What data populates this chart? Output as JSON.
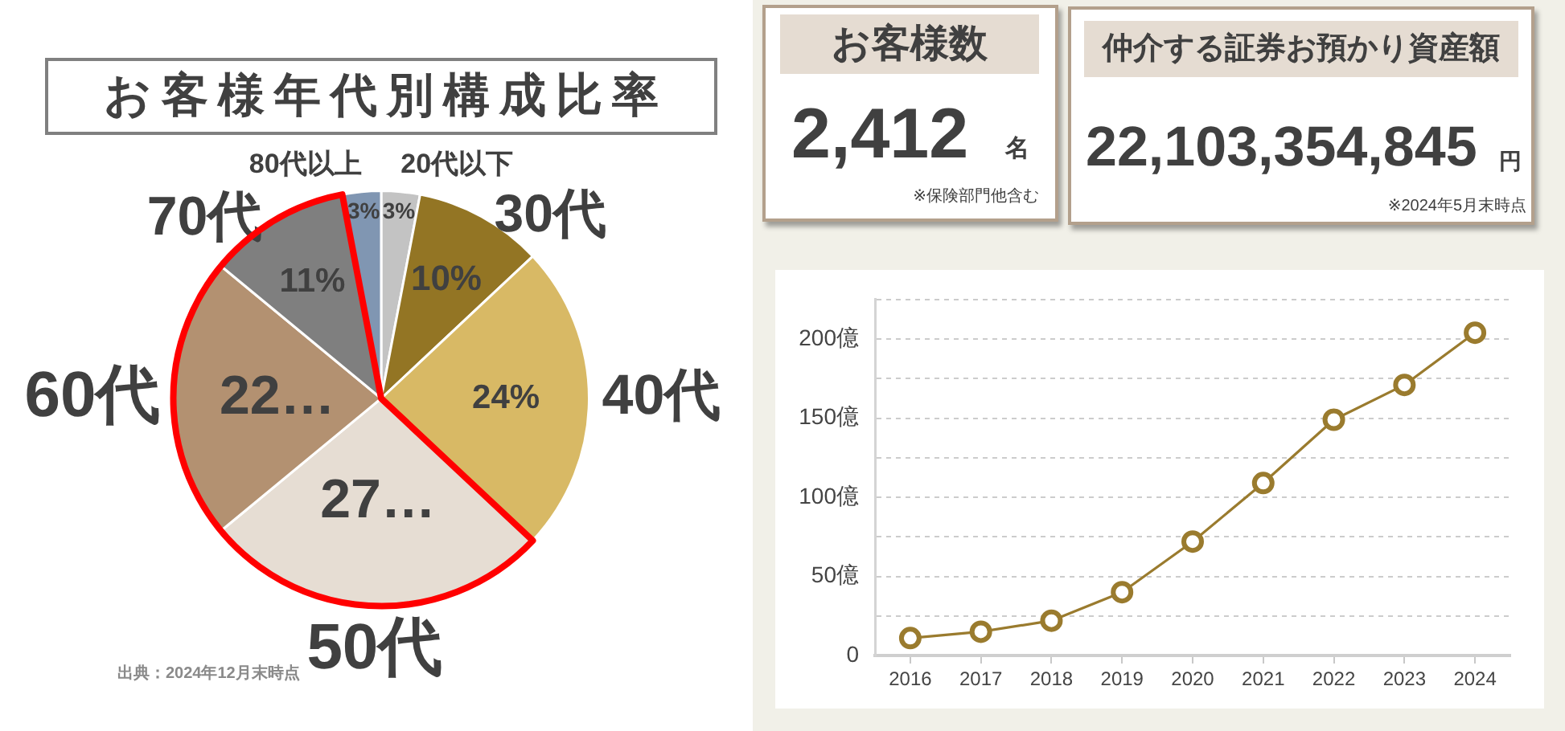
{
  "chart_data": [
    {
      "type": "pie",
      "title": "お客様年代別構成比率",
      "categories": [
        "20代以下",
        "30代",
        "40代",
        "50代",
        "60代",
        "70代",
        "80代以上"
      ],
      "values": [
        3,
        10,
        24,
        27,
        22,
        11,
        3
      ],
      "colors": [
        "#c3c3c3",
        "#937524",
        "#d8b965",
        "#e6ddd3",
        "#b39171",
        "#7f7f7f",
        "#8096b2"
      ],
      "value_labels": [
        "3%",
        "10%",
        "24%",
        "27…",
        "22…",
        "11%",
        "3%"
      ],
      "annotations": [
        "出典：2024年12月末時点"
      ]
    },
    {
      "type": "other",
      "title": "お客様数",
      "annotations": [
        "2,412",
        "名",
        "※保険部門他含む"
      ]
    },
    {
      "type": "other",
      "title": "仲介する証券お預かり資産額",
      "annotations": [
        "22,103,354,845",
        "円",
        "※2024年5月末時点"
      ]
    },
    {
      "type": "line",
      "categories": [
        "2016",
        "2017",
        "2018",
        "2019",
        "2020",
        "2021",
        "2022",
        "2023",
        "2024"
      ],
      "series": [
        {
          "color": "#9a7b2e",
          "values": [
            11,
            15,
            22,
            40,
            72,
            109,
            149,
            171,
            204
          ]
        }
      ],
      "ylim": [
        0,
        225
      ],
      "yticks": [
        0,
        {
          "value": 25,
          "label": null
        },
        {
          "value": 50,
          "label": "50億"
        },
        {
          "value": 75,
          "label": null
        },
        {
          "value": 100,
          "label": "100億"
        },
        {
          "value": 125,
          "label": null
        },
        {
          "value": 150,
          "label": "150億"
        },
        {
          "value": 175,
          "label": null
        },
        {
          "value": 200,
          "label": "200億"
        },
        {
          "value": 225,
          "label": null
        }
      ],
      "grid": "y",
      "marker": "circle"
    }
  ]
}
